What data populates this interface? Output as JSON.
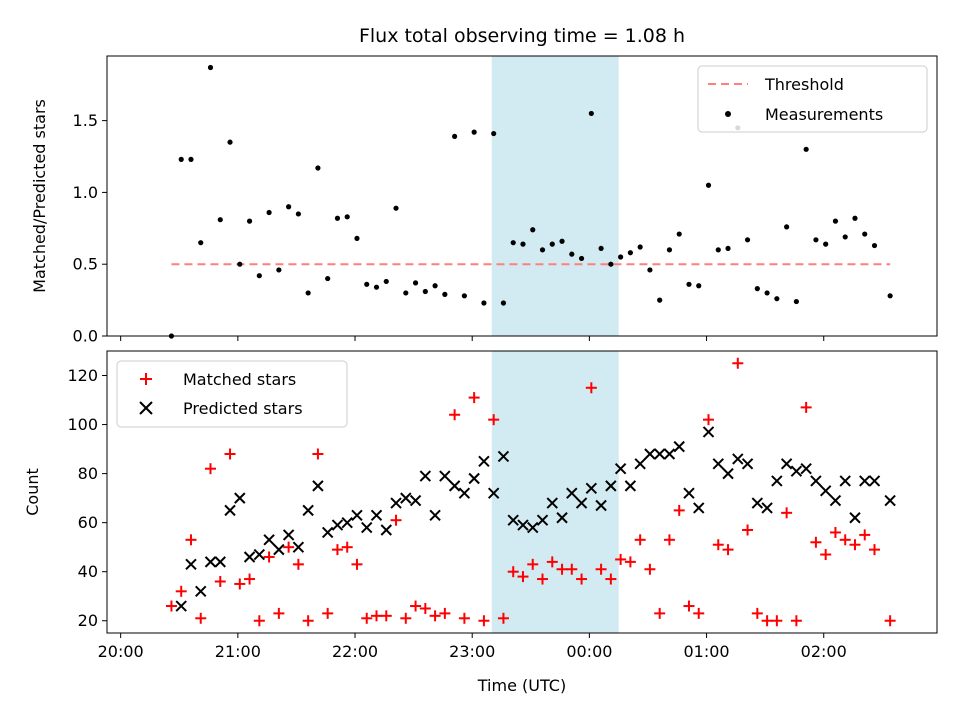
{
  "chart_data": [
    {
      "type": "scatter",
      "title": "Flux total observing time = 1.08 h",
      "ylabel": "Matched/Predicted stars",
      "xlabel": "",
      "ylim": [
        0,
        1.95
      ],
      "xlim": [
        "19:53",
        "02:58"
      ],
      "x_ticks": [
        "20:00",
        "21:00",
        "22:00",
        "23:00",
        "00:00",
        "01:00",
        "02:00"
      ],
      "y_ticks": [
        "0.0",
        "0.5",
        "1.0",
        "1.5"
      ],
      "highlight_band": {
        "x_start": "23:10",
        "x_end": "00:15",
        "color": "#add8e6"
      },
      "legend_position": "upper right",
      "threshold": {
        "name": "Threshold",
        "value": 0.5,
        "x_start": "20:26",
        "x_end": "02:34",
        "color": "#ff7f7f",
        "style": "dashed"
      },
      "series": [
        {
          "name": "Measurements",
          "color": "#000000",
          "marker": "dot",
          "points": [
            [
              "20:26",
              0.0
            ],
            [
              "20:31",
              1.23
            ],
            [
              "20:36",
              1.23
            ],
            [
              "20:41",
              0.65
            ],
            [
              "20:46",
              1.87
            ],
            [
              "20:51",
              0.81
            ],
            [
              "20:56",
              1.35
            ],
            [
              "21:01",
              0.5
            ],
            [
              "21:06",
              0.8
            ],
            [
              "21:11",
              0.42
            ],
            [
              "21:16",
              0.86
            ],
            [
              "21:21",
              0.46
            ],
            [
              "21:26",
              0.9
            ],
            [
              "21:31",
              0.85
            ],
            [
              "21:36",
              0.3
            ],
            [
              "21:41",
              1.17
            ],
            [
              "21:46",
              0.4
            ],
            [
              "21:51",
              0.82
            ],
            [
              "21:56",
              0.83
            ],
            [
              "22:01",
              0.68
            ],
            [
              "22:06",
              0.36
            ],
            [
              "22:11",
              0.34
            ],
            [
              "22:16",
              0.38
            ],
            [
              "22:21",
              0.89
            ],
            [
              "22:26",
              0.3
            ],
            [
              "22:31",
              0.37
            ],
            [
              "22:36",
              0.31
            ],
            [
              "22:41",
              0.35
            ],
            [
              "22:46",
              0.29
            ],
            [
              "22:51",
              1.39
            ],
            [
              "22:56",
              0.28
            ],
            [
              "23:01",
              1.42
            ],
            [
              "23:06",
              0.23
            ],
            [
              "23:11",
              1.41
            ],
            [
              "23:16",
              0.23
            ],
            [
              "23:21",
              0.65
            ],
            [
              "23:26",
              0.64
            ],
            [
              "23:31",
              0.74
            ],
            [
              "23:36",
              0.6
            ],
            [
              "23:41",
              0.64
            ],
            [
              "23:46",
              0.66
            ],
            [
              "23:51",
              0.57
            ],
            [
              "23:56",
              0.54
            ],
            [
              "00:01",
              1.55
            ],
            [
              "00:06",
              0.61
            ],
            [
              "00:11",
              0.5
            ],
            [
              "00:16",
              0.55
            ],
            [
              "00:21",
              0.58
            ],
            [
              "00:26",
              0.62
            ],
            [
              "00:31",
              0.46
            ],
            [
              "00:36",
              0.25
            ],
            [
              "00:41",
              0.6
            ],
            [
              "00:46",
              0.71
            ],
            [
              "00:51",
              0.36
            ],
            [
              "00:56",
              0.35
            ],
            [
              "01:01",
              1.05
            ],
            [
              "01:06",
              0.6
            ],
            [
              "01:11",
              0.61
            ],
            [
              "01:16",
              1.45
            ],
            [
              "01:21",
              0.67
            ],
            [
              "01:26",
              0.33
            ],
            [
              "01:31",
              0.3
            ],
            [
              "01:36",
              0.26
            ],
            [
              "01:41",
              0.76
            ],
            [
              "01:46",
              0.24
            ],
            [
              "01:51",
              1.3
            ],
            [
              "01:56",
              0.67
            ],
            [
              "02:01",
              0.64
            ],
            [
              "02:06",
              0.8
            ],
            [
              "02:11",
              0.69
            ],
            [
              "02:16",
              0.82
            ],
            [
              "02:21",
              0.71
            ],
            [
              "02:26",
              0.63
            ],
            [
              "02:34",
              0.28
            ]
          ]
        }
      ]
    },
    {
      "type": "scatter",
      "title": "",
      "ylabel": "Count",
      "xlabel": "Time (UTC)",
      "ylim": [
        15,
        130
      ],
      "xlim": [
        "19:53",
        "02:58"
      ],
      "x_ticks": [
        "20:00",
        "21:00",
        "22:00",
        "23:00",
        "00:00",
        "01:00",
        "02:00"
      ],
      "y_ticks": [
        "20",
        "40",
        "60",
        "80",
        "100",
        "120"
      ],
      "highlight_band": {
        "x_start": "23:10",
        "x_end": "00:15",
        "color": "#add8e6"
      },
      "legend_position": "upper left",
      "series": [
        {
          "name": "Matched stars",
          "color": "#ff0000",
          "marker": "plus",
          "points": [
            [
              "20:26",
              26
            ],
            [
              "20:31",
              32
            ],
            [
              "20:36",
              53
            ],
            [
              "20:41",
              21
            ],
            [
              "20:46",
              82
            ],
            [
              "20:51",
              36
            ],
            [
              "20:56",
              88
            ],
            [
              "21:01",
              35
            ],
            [
              "21:06",
              37
            ],
            [
              "21:11",
              20
            ],
            [
              "21:16",
              46
            ],
            [
              "21:21",
              23
            ],
            [
              "21:26",
              50
            ],
            [
              "21:31",
              43
            ],
            [
              "21:36",
              20
            ],
            [
              "21:41",
              88
            ],
            [
              "21:46",
              23
            ],
            [
              "21:51",
              49
            ],
            [
              "21:56",
              50
            ],
            [
              "22:01",
              43
            ],
            [
              "22:06",
              21
            ],
            [
              "22:11",
              22
            ],
            [
              "22:16",
              22
            ],
            [
              "22:21",
              61
            ],
            [
              "22:26",
              21
            ],
            [
              "22:31",
              26
            ],
            [
              "22:36",
              25
            ],
            [
              "22:41",
              22
            ],
            [
              "22:46",
              23
            ],
            [
              "22:51",
              104
            ],
            [
              "22:56",
              21
            ],
            [
              "23:01",
              111
            ],
            [
              "23:06",
              20
            ],
            [
              "23:11",
              102
            ],
            [
              "23:16",
              21
            ],
            [
              "23:21",
              40
            ],
            [
              "23:26",
              38
            ],
            [
              "23:31",
              43
            ],
            [
              "23:36",
              37
            ],
            [
              "23:41",
              44
            ],
            [
              "23:46",
              41
            ],
            [
              "23:51",
              41
            ],
            [
              "23:56",
              37
            ],
            [
              "00:01",
              115
            ],
            [
              "00:06",
              41
            ],
            [
              "00:11",
              37
            ],
            [
              "00:16",
              45
            ],
            [
              "00:21",
              44
            ],
            [
              "00:26",
              53
            ],
            [
              "00:31",
              41
            ],
            [
              "00:36",
              23
            ],
            [
              "00:41",
              53
            ],
            [
              "00:46",
              65
            ],
            [
              "00:51",
              26
            ],
            [
              "00:56",
              23
            ],
            [
              "01:01",
              102
            ],
            [
              "01:06",
              51
            ],
            [
              "01:11",
              49
            ],
            [
              "01:16",
              125
            ],
            [
              "01:21",
              57
            ],
            [
              "01:26",
              23
            ],
            [
              "01:31",
              20
            ],
            [
              "01:36",
              20
            ],
            [
              "01:41",
              64
            ],
            [
              "01:46",
              20
            ],
            [
              "01:51",
              107
            ],
            [
              "01:56",
              52
            ],
            [
              "02:01",
              47
            ],
            [
              "02:06",
              56
            ],
            [
              "02:11",
              53
            ],
            [
              "02:16",
              51
            ],
            [
              "02:21",
              55
            ],
            [
              "02:26",
              49
            ],
            [
              "02:34",
              20
            ]
          ]
        },
        {
          "name": "Predicted stars",
          "color": "#000000",
          "marker": "x",
          "points": [
            [
              "20:31",
              26
            ],
            [
              "20:36",
              43
            ],
            [
              "20:41",
              32
            ],
            [
              "20:46",
              44
            ],
            [
              "20:51",
              44
            ],
            [
              "20:56",
              65
            ],
            [
              "21:01",
              70
            ],
            [
              "21:06",
              46
            ],
            [
              "21:11",
              47
            ],
            [
              "21:16",
              53
            ],
            [
              "21:21",
              49
            ],
            [
              "21:26",
              55
            ],
            [
              "21:31",
              50
            ],
            [
              "21:36",
              65
            ],
            [
              "21:41",
              75
            ],
            [
              "21:46",
              56
            ],
            [
              "21:51",
              59
            ],
            [
              "21:56",
              60
            ],
            [
              "22:01",
              63
            ],
            [
              "22:06",
              58
            ],
            [
              "22:11",
              63
            ],
            [
              "22:16",
              57
            ],
            [
              "22:21",
              68
            ],
            [
              "22:26",
              70
            ],
            [
              "22:31",
              69
            ],
            [
              "22:36",
              79
            ],
            [
              "22:41",
              63
            ],
            [
              "22:46",
              79
            ],
            [
              "22:51",
              75
            ],
            [
              "22:56",
              72
            ],
            [
              "23:01",
              78
            ],
            [
              "23:06",
              85
            ],
            [
              "23:11",
              72
            ],
            [
              "23:16",
              87
            ],
            [
              "23:21",
              61
            ],
            [
              "23:26",
              59
            ],
            [
              "23:31",
              58
            ],
            [
              "23:36",
              61
            ],
            [
              "23:41",
              68
            ],
            [
              "23:46",
              62
            ],
            [
              "23:51",
              72
            ],
            [
              "23:56",
              68
            ],
            [
              "00:01",
              74
            ],
            [
              "00:06",
              67
            ],
            [
              "00:11",
              75
            ],
            [
              "00:16",
              82
            ],
            [
              "00:21",
              75
            ],
            [
              "00:26",
              84
            ],
            [
              "00:31",
              88
            ],
            [
              "00:36",
              88
            ],
            [
              "00:41",
              88
            ],
            [
              "00:46",
              91
            ],
            [
              "00:51",
              72
            ],
            [
              "00:56",
              66
            ],
            [
              "01:01",
              97
            ],
            [
              "01:06",
              84
            ],
            [
              "01:11",
              80
            ],
            [
              "01:16",
              86
            ],
            [
              "01:21",
              84
            ],
            [
              "01:26",
              68
            ],
            [
              "01:31",
              66
            ],
            [
              "01:36",
              77
            ],
            [
              "01:41",
              84
            ],
            [
              "01:46",
              81
            ],
            [
              "01:51",
              82
            ],
            [
              "01:56",
              77
            ],
            [
              "02:01",
              73
            ],
            [
              "02:06",
              69
            ],
            [
              "02:11",
              77
            ],
            [
              "02:16",
              62
            ],
            [
              "02:21",
              77
            ],
            [
              "02:26",
              77
            ],
            [
              "02:34",
              69
            ]
          ]
        }
      ]
    }
  ]
}
